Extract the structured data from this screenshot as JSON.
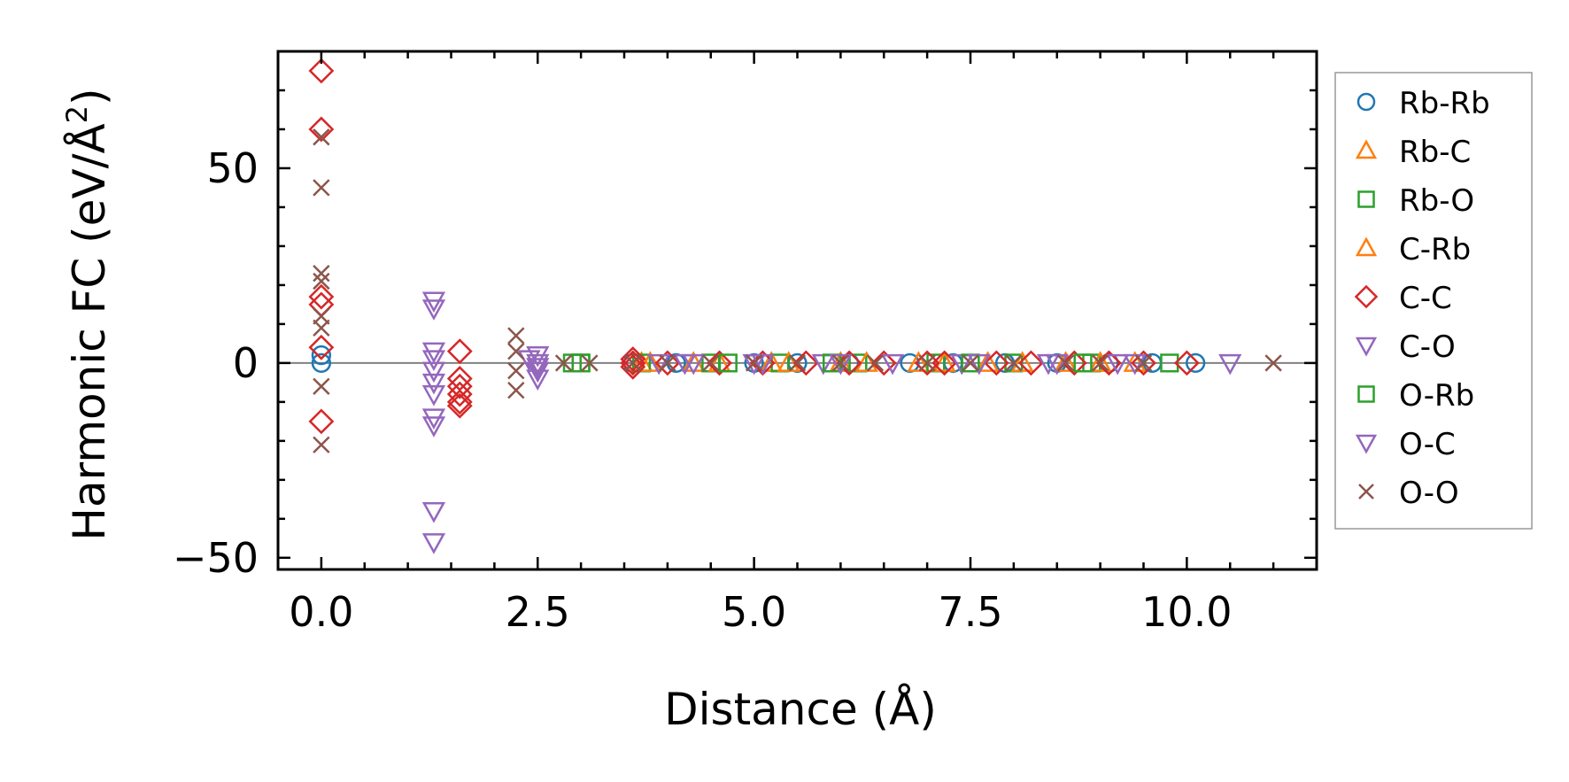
{
  "chart_data": {
    "type": "scatter",
    "title": "",
    "xlabel": "Distance (Å)",
    "ylabel": "Harmonic FC (eV/Å",
    "ylabel_superscript": "2",
    "ylabel_close": ")",
    "xlim": [
      -0.5,
      11.5
    ],
    "ylim": [
      -53,
      80
    ],
    "xticks": [
      0.0,
      2.5,
      5.0,
      7.5,
      10.0
    ],
    "xtick_labels": [
      "0.0",
      "2.5",
      "5.0",
      "7.5",
      "10.0"
    ],
    "yticks": [
      -50,
      0,
      50
    ],
    "ytick_labels": [
      "−50",
      "0",
      "50"
    ],
    "zero_line": true,
    "legend_position": "outside-right",
    "series": [
      {
        "name": "Rb-Rb",
        "marker": "circle",
        "color": "#1f77b4",
        "x": [
          0.0,
          0.0,
          3.6,
          4.1,
          5.0,
          5.5,
          6.1,
          6.8,
          7.3,
          7.9,
          8.5,
          9.1,
          9.6,
          10.1
        ],
        "y": [
          0.0,
          2.0,
          0.0,
          0.0,
          0.0,
          0.0,
          0.0,
          0.0,
          0.0,
          0.0,
          0.0,
          0.0,
          0.0,
          0.0
        ]
      },
      {
        "name": "Rb-C",
        "marker": "triangle-up",
        "color": "#ff7f0e",
        "x": [
          3.7,
          4.3,
          5.2,
          6.0,
          6.9,
          7.7,
          8.6,
          9.4
        ],
        "y": [
          0.0,
          0.0,
          0.0,
          0.0,
          0.0,
          0.0,
          0.0,
          0.0
        ]
      },
      {
        "name": "Rb-O",
        "marker": "square",
        "color": "#2ca02c",
        "x": [
          2.9,
          3.0,
          3.7,
          4.5,
          5.3,
          6.2,
          7.1,
          8.0,
          8.9,
          9.8
        ],
        "y": [
          0.0,
          0.0,
          0.0,
          0.0,
          0.0,
          0.0,
          0.0,
          0.0,
          0.0,
          0.0
        ]
      },
      {
        "name": "C-Rb",
        "marker": "triangle-up",
        "color": "#ff7f0e",
        "x": [
          3.8,
          4.6,
          5.4,
          6.3,
          7.2,
          8.1,
          9.0
        ],
        "y": [
          0.0,
          0.0,
          0.0,
          0.0,
          0.0,
          0.0,
          0.0
        ]
      },
      {
        "name": "C-C",
        "marker": "diamond",
        "color": "#d62728",
        "x": [
          0.0,
          0.0,
          0.0,
          0.0,
          0.0,
          0.0,
          1.6,
          1.6,
          1.6,
          1.6,
          1.6,
          1.6,
          3.6,
          3.6,
          3.6,
          4.0,
          4.6,
          5.1,
          5.6,
          6.1,
          6.5,
          7.0,
          7.2,
          7.8,
          8.2,
          8.7,
          9.1,
          9.5,
          10.0
        ],
        "y": [
          75.0,
          60.0,
          17.0,
          15.0,
          -15.0,
          4.0,
          3.0,
          -4.0,
          -6.0,
          -8.0,
          -10.0,
          -11.0,
          1.0,
          0.0,
          -1.0,
          0.0,
          0.0,
          0.0,
          0.0,
          0.0,
          0.0,
          0.0,
          0.0,
          0.0,
          0.0,
          0.0,
          0.0,
          0.0,
          0.0
        ]
      },
      {
        "name": "C-O",
        "marker": "triangle-down",
        "color": "#9467bd",
        "x": [
          1.3,
          1.3,
          1.3,
          1.3,
          1.3,
          1.3,
          1.3,
          1.3,
          1.3,
          1.3,
          1.3,
          2.5,
          2.5,
          2.5,
          2.5,
          4.3,
          5.0,
          5.8,
          6.6,
          7.4,
          8.4,
          9.2,
          10.5
        ],
        "y": [
          16.0,
          14.0,
          3.0,
          1.0,
          -2.0,
          -5.0,
          -8.0,
          -14.0,
          -16.0,
          -38.0,
          -46.0,
          2.0,
          0.0,
          -2.0,
          -4.0,
          0.0,
          0.0,
          0.0,
          0.0,
          0.0,
          0.0,
          0.0,
          0.0
        ]
      },
      {
        "name": "O-Rb",
        "marker": "square",
        "color": "#2ca02c",
        "x": [
          3.0,
          4.7,
          5.9,
          7.5,
          8.8
        ],
        "y": [
          0.0,
          0.0,
          0.0,
          0.0,
          0.0
        ]
      },
      {
        "name": "O-C",
        "marker": "triangle-down",
        "color": "#9467bd",
        "x": [
          2.4,
          2.5,
          3.9,
          4.2,
          5.1,
          6.0,
          7.6,
          8.5,
          9.4
        ],
        "y": [
          1.0,
          -1.0,
          0.0,
          0.0,
          0.0,
          0.0,
          0.0,
          0.0,
          0.0
        ]
      },
      {
        "name": "O-O",
        "marker": "x",
        "color": "#8c564b",
        "x": [
          0.0,
          0.0,
          0.0,
          0.0,
          0.0,
          0.0,
          0.0,
          0.0,
          2.25,
          2.25,
          2.25,
          2.25,
          2.8,
          3.1,
          3.6,
          4.0,
          4.5,
          5.0,
          5.5,
          6.0,
          6.4,
          7.0,
          7.5,
          8.0,
          8.6,
          9.0,
          9.5,
          11.0
        ],
        "y": [
          58.0,
          45.0,
          23.0,
          21.0,
          9.0,
          -6.0,
          -21.0,
          12.0,
          7.0,
          3.0,
          -2.0,
          -7.0,
          0.0,
          0.0,
          0.0,
          0.0,
          0.0,
          0.0,
          0.0,
          0.0,
          0.0,
          0.0,
          0.0,
          0.0,
          0.0,
          0.0,
          0.0,
          0.0
        ]
      }
    ]
  }
}
